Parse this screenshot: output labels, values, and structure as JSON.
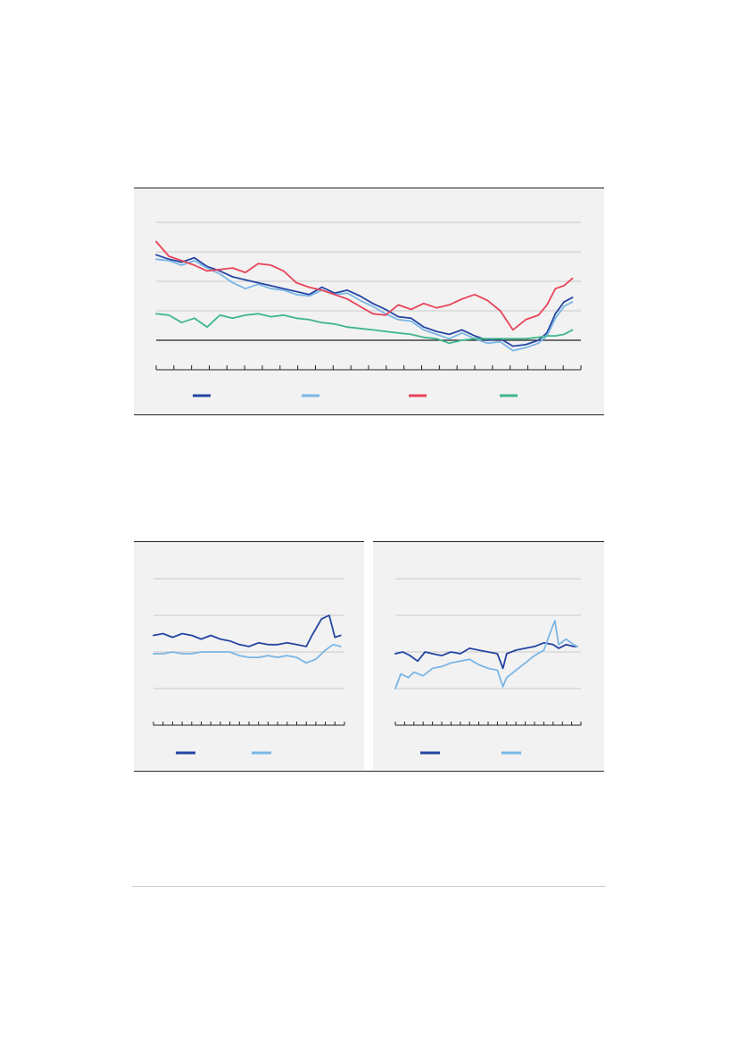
{
  "colors": {
    "dark_blue": "#2545a3",
    "light_blue": "#7ab6e6",
    "red": "#e8435a",
    "green": "#3fb68b",
    "panel_bg": "#f2f2f2",
    "grid": "#bdbdbd",
    "axis": "#222222"
  },
  "chart_data": [
    {
      "type": "line",
      "grid": true,
      "legend_position": "bottom",
      "x": [
        0,
        100
      ],
      "xlim": [
        0,
        100
      ],
      "ylim": [
        -1,
        4
      ],
      "x_ticks": 24,
      "gridlines_y": [
        0,
        1,
        2,
        3,
        4
      ],
      "baseline_y": 0,
      "series": [
        {
          "key": "dark_blue",
          "values": [
            [
              0,
              2.9
            ],
            [
              3,
              2.75
            ],
            [
              6,
              2.65
            ],
            [
              9,
              2.8
            ],
            [
              12,
              2.5
            ],
            [
              15,
              2.35
            ],
            [
              18,
              2.15
            ],
            [
              21,
              2.05
            ],
            [
              24,
              1.95
            ],
            [
              27,
              1.85
            ],
            [
              30,
              1.75
            ],
            [
              33,
              1.65
            ],
            [
              36,
              1.55
            ],
            [
              39,
              1.8
            ],
            [
              42,
              1.6
            ],
            [
              45,
              1.7
            ],
            [
              48,
              1.5
            ],
            [
              51,
              1.25
            ],
            [
              54,
              1.05
            ],
            [
              57,
              0.8
            ],
            [
              60,
              0.75
            ],
            [
              63,
              0.45
            ],
            [
              66,
              0.3
            ],
            [
              69,
              0.2
            ],
            [
              72,
              0.35
            ],
            [
              75,
              0.15
            ],
            [
              78,
              0.0
            ],
            [
              81,
              0.05
            ],
            [
              84,
              -0.2
            ],
            [
              87,
              -0.15
            ],
            [
              90,
              0.0
            ],
            [
              92,
              0.25
            ],
            [
              94,
              0.9
            ],
            [
              96,
              1.3
            ],
            [
              98,
              1.45
            ]
          ]
        },
        {
          "key": "light_blue",
          "values": [
            [
              0,
              2.75
            ],
            [
              3,
              2.7
            ],
            [
              6,
              2.55
            ],
            [
              9,
              2.7
            ],
            [
              12,
              2.45
            ],
            [
              15,
              2.25
            ],
            [
              18,
              1.95
            ],
            [
              21,
              1.75
            ],
            [
              24,
              1.9
            ],
            [
              27,
              1.75
            ],
            [
              30,
              1.7
            ],
            [
              33,
              1.55
            ],
            [
              36,
              1.5
            ],
            [
              39,
              1.7
            ],
            [
              42,
              1.55
            ],
            [
              45,
              1.6
            ],
            [
              48,
              1.35
            ],
            [
              51,
              1.15
            ],
            [
              54,
              0.9
            ],
            [
              57,
              0.7
            ],
            [
              60,
              0.65
            ],
            [
              63,
              0.35
            ],
            [
              66,
              0.2
            ],
            [
              69,
              0.05
            ],
            [
              72,
              0.25
            ],
            [
              75,
              0.05
            ],
            [
              78,
              -0.1
            ],
            [
              81,
              -0.05
            ],
            [
              84,
              -0.35
            ],
            [
              87,
              -0.25
            ],
            [
              90,
              -0.1
            ],
            [
              92,
              0.15
            ],
            [
              94,
              0.75
            ],
            [
              96,
              1.15
            ],
            [
              98,
              1.3
            ]
          ]
        },
        {
          "key": "red",
          "values": [
            [
              0,
              3.35
            ],
            [
              3,
              2.85
            ],
            [
              6,
              2.7
            ],
            [
              9,
              2.55
            ],
            [
              12,
              2.35
            ],
            [
              15,
              2.4
            ],
            [
              18,
              2.45
            ],
            [
              21,
              2.3
            ],
            [
              24,
              2.6
            ],
            [
              27,
              2.55
            ],
            [
              30,
              2.35
            ],
            [
              33,
              1.95
            ],
            [
              36,
              1.8
            ],
            [
              39,
              1.7
            ],
            [
              42,
              1.55
            ],
            [
              45,
              1.4
            ],
            [
              48,
              1.15
            ],
            [
              51,
              0.9
            ],
            [
              54,
              0.85
            ],
            [
              57,
              1.2
            ],
            [
              60,
              1.05
            ],
            [
              63,
              1.25
            ],
            [
              66,
              1.1
            ],
            [
              69,
              1.2
            ],
            [
              72,
              1.4
            ],
            [
              75,
              1.55
            ],
            [
              78,
              1.35
            ],
            [
              81,
              1.0
            ],
            [
              84,
              0.35
            ],
            [
              87,
              0.7
            ],
            [
              90,
              0.85
            ],
            [
              92,
              1.2
            ],
            [
              94,
              1.75
            ],
            [
              96,
              1.85
            ],
            [
              98,
              2.1
            ]
          ]
        },
        {
          "key": "green",
          "values": [
            [
              0,
              0.9
            ],
            [
              3,
              0.85
            ],
            [
              6,
              0.6
            ],
            [
              9,
              0.75
            ],
            [
              12,
              0.45
            ],
            [
              15,
              0.85
            ],
            [
              18,
              0.75
            ],
            [
              21,
              0.85
            ],
            [
              24,
              0.9
            ],
            [
              27,
              0.8
            ],
            [
              30,
              0.85
            ],
            [
              33,
              0.75
            ],
            [
              36,
              0.7
            ],
            [
              39,
              0.6
            ],
            [
              42,
              0.55
            ],
            [
              45,
              0.45
            ],
            [
              48,
              0.4
            ],
            [
              51,
              0.35
            ],
            [
              54,
              0.3
            ],
            [
              57,
              0.25
            ],
            [
              60,
              0.2
            ],
            [
              63,
              0.1
            ],
            [
              66,
              0.05
            ],
            [
              69,
              -0.1
            ],
            [
              72,
              0.0
            ],
            [
              75,
              0.05
            ],
            [
              78,
              0.05
            ],
            [
              81,
              0.05
            ],
            [
              84,
              0.05
            ],
            [
              87,
              0.05
            ],
            [
              90,
              0.1
            ],
            [
              92,
              0.15
            ],
            [
              94,
              0.15
            ],
            [
              96,
              0.2
            ],
            [
              98,
              0.35
            ]
          ]
        }
      ]
    },
    {
      "type": "line",
      "grid": true,
      "legend_position": "bottom",
      "xlim": [
        0,
        100
      ],
      "ylim": [
        -1,
        3
      ],
      "x_ticks": 20,
      "gridlines_y": [
        -1,
        0,
        1,
        2,
        3
      ],
      "series": [
        {
          "key": "dark_blue",
          "values": [
            [
              0,
              1.45
            ],
            [
              5,
              1.5
            ],
            [
              10,
              1.4
            ],
            [
              15,
              1.5
            ],
            [
              20,
              1.45
            ],
            [
              25,
              1.35
            ],
            [
              30,
              1.45
            ],
            [
              35,
              1.35
            ],
            [
              40,
              1.3
            ],
            [
              45,
              1.2
            ],
            [
              50,
              1.15
            ],
            [
              55,
              1.25
            ],
            [
              60,
              1.2
            ],
            [
              65,
              1.2
            ],
            [
              70,
              1.25
            ],
            [
              75,
              1.2
            ],
            [
              80,
              1.15
            ],
            [
              83,
              1.45
            ],
            [
              88,
              1.9
            ],
            [
              92,
              2.0
            ],
            [
              95,
              1.4
            ],
            [
              98,
              1.45
            ]
          ]
        },
        {
          "key": "light_blue",
          "values": [
            [
              0,
              0.95
            ],
            [
              5,
              0.95
            ],
            [
              10,
              1.0
            ],
            [
              15,
              0.95
            ],
            [
              20,
              0.95
            ],
            [
              25,
              1.0
            ],
            [
              30,
              1.0
            ],
            [
              35,
              1.0
            ],
            [
              40,
              1.0
            ],
            [
              45,
              0.9
            ],
            [
              50,
              0.85
            ],
            [
              55,
              0.85
            ],
            [
              60,
              0.9
            ],
            [
              65,
              0.85
            ],
            [
              70,
              0.9
            ],
            [
              75,
              0.85
            ],
            [
              80,
              0.7
            ],
            [
              85,
              0.8
            ],
            [
              90,
              1.05
            ],
            [
              94,
              1.2
            ],
            [
              98,
              1.15
            ]
          ]
        }
      ]
    },
    {
      "type": "line",
      "grid": true,
      "legend_position": "bottom",
      "xlim": [
        0,
        100
      ],
      "ylim": [
        -2,
        2
      ],
      "x_ticks": 20,
      "gridlines_y": [
        -1,
        0,
        1,
        2
      ],
      "series": [
        {
          "key": "dark_blue",
          "values": [
            [
              0,
              -0.05
            ],
            [
              4,
              0.0
            ],
            [
              8,
              -0.1
            ],
            [
              12,
              -0.25
            ],
            [
              16,
              0.0
            ],
            [
              20,
              -0.05
            ],
            [
              25,
              -0.1
            ],
            [
              30,
              0.0
            ],
            [
              35,
              -0.05
            ],
            [
              40,
              0.1
            ],
            [
              45,
              0.05
            ],
            [
              50,
              0.0
            ],
            [
              55,
              -0.05
            ],
            [
              58,
              -0.45
            ],
            [
              60,
              -0.05
            ],
            [
              65,
              0.05
            ],
            [
              70,
              0.1
            ],
            [
              75,
              0.15
            ],
            [
              80,
              0.25
            ],
            [
              85,
              0.2
            ],
            [
              88,
              0.1
            ],
            [
              92,
              0.2
            ],
            [
              96,
              0.15
            ],
            [
              98,
              0.15
            ]
          ]
        },
        {
          "key": "light_blue",
          "values": [
            [
              0,
              -1.0
            ],
            [
              3,
              -0.6
            ],
            [
              7,
              -0.7
            ],
            [
              10,
              -0.55
            ],
            [
              15,
              -0.65
            ],
            [
              20,
              -0.45
            ],
            [
              25,
              -0.4
            ],
            [
              30,
              -0.3
            ],
            [
              35,
              -0.25
            ],
            [
              40,
              -0.2
            ],
            [
              45,
              -0.35
            ],
            [
              50,
              -0.45
            ],
            [
              55,
              -0.5
            ],
            [
              58,
              -0.95
            ],
            [
              60,
              -0.7
            ],
            [
              65,
              -0.5
            ],
            [
              70,
              -0.3
            ],
            [
              75,
              -0.1
            ],
            [
              80,
              0.05
            ],
            [
              84,
              0.6
            ],
            [
              86,
              0.85
            ],
            [
              88,
              0.2
            ],
            [
              92,
              0.35
            ],
            [
              96,
              0.2
            ],
            [
              98,
              0.15
            ]
          ]
        }
      ]
    }
  ]
}
